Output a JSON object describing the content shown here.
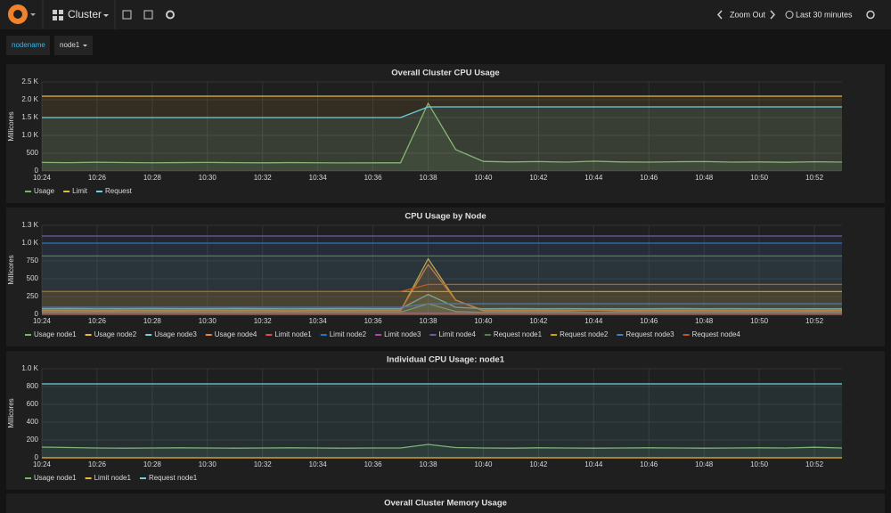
{
  "header": {
    "dashboard": "Cluster",
    "zoom": "Zoom Out",
    "time_range": "Last 30 minutes"
  },
  "variables": {
    "label": "nodename",
    "value": "node1"
  },
  "chart_data": [
    {
      "type": "line",
      "title": "Overall Cluster CPU Usage",
      "y_label": "Millicores",
      "grid": true,
      "categories": [
        "10:24",
        null,
        "10:26",
        null,
        "10:28",
        null,
        "10:30",
        null,
        "10:32",
        null,
        "10:34",
        null,
        "10:36",
        null,
        "10:38",
        null,
        "10:40",
        null,
        "10:42",
        null,
        "10:44",
        null,
        "10:46",
        null,
        "10:48",
        null,
        "10:50",
        null,
        "10:52",
        null
      ],
      "ylim": [
        0,
        2500
      ],
      "yticks": [
        0,
        500,
        {
          "value": 1000,
          "label": "1.0 K"
        },
        {
          "value": 1500,
          "label": "1.5 K"
        },
        {
          "value": 2000,
          "label": "2.0 K"
        },
        {
          "value": 2500,
          "label": "2.5 K"
        }
      ],
      "series": [
        {
          "name": "Usage",
          "color": "#7eb26d",
          "values": [
            240,
            235,
            245,
            238,
            232,
            236,
            240,
            234,
            230,
            236,
            232,
            228,
            230,
            230,
            1900,
            600,
            270,
            255,
            265,
            250,
            275,
            255,
            250,
            260,
            265,
            250,
            255,
            245,
            260,
            250
          ]
        },
        {
          "name": "Limit",
          "color": "#eab839",
          "values": [
            2100,
            2100,
            2100,
            2100,
            2100,
            2100,
            2100,
            2100,
            2100,
            2100,
            2100,
            2100,
            2100,
            2100,
            2100,
            2100,
            2100,
            2100,
            2100,
            2100,
            2100,
            2100,
            2100,
            2100,
            2100,
            2100,
            2100,
            2100,
            2100,
            2100
          ]
        },
        {
          "name": "Request",
          "color": "#6ed0e0",
          "values": [
            1500,
            1500,
            1500,
            1500,
            1500,
            1500,
            1500,
            1500,
            1500,
            1500,
            1500,
            1500,
            1500,
            1500,
            1800,
            1800,
            1800,
            1800,
            1800,
            1800,
            1800,
            1800,
            1800,
            1800,
            1800,
            1800,
            1800,
            1800,
            1800,
            1800
          ]
        }
      ]
    },
    {
      "type": "line",
      "title": "CPU Usage by Node",
      "y_label": "Millicores",
      "grid": true,
      "categories": [
        "10:24",
        null,
        "10:26",
        null,
        "10:28",
        null,
        "10:30",
        null,
        "10:32",
        null,
        "10:34",
        null,
        "10:36",
        null,
        "10:38",
        null,
        "10:40",
        null,
        "10:42",
        null,
        "10:44",
        null,
        "10:46",
        null,
        "10:48",
        null,
        "10:50",
        null,
        "10:52",
        null
      ],
      "ylim": [
        0,
        1250
      ],
      "yticks": [
        0,
        250,
        500,
        750,
        {
          "value": 1000,
          "label": "1.0 K"
        },
        {
          "value": 1250,
          "label": "1.3 K"
        }
      ],
      "series": [
        {
          "name": "Usage node1",
          "color": "#7eb26d",
          "values": [
            30,
            32,
            28,
            30,
            31,
            29,
            30,
            32,
            30,
            28,
            30,
            31,
            30,
            30,
            150,
            40,
            30,
            32,
            30,
            31,
            30,
            29,
            30,
            32,
            30,
            31,
            30,
            30,
            29,
            30
          ]
        },
        {
          "name": "Usage node2",
          "color": "#eab839",
          "values": [
            50,
            52,
            48,
            50,
            51,
            49,
            50,
            52,
            50,
            48,
            50,
            51,
            50,
            50,
            780,
            200,
            50,
            52,
            50,
            51,
            60,
            49,
            50,
            52,
            50,
            51,
            50,
            50,
            49,
            50
          ]
        },
        {
          "name": "Usage node3",
          "color": "#6ed0e0",
          "values": [
            80,
            82,
            78,
            80,
            81,
            79,
            80,
            82,
            80,
            78,
            80,
            81,
            80,
            80,
            280,
            100,
            80,
            82,
            80,
            81,
            80,
            79,
            80,
            82,
            80,
            81,
            80,
            80,
            79,
            80
          ]
        },
        {
          "name": "Usage node4",
          "color": "#ef843c",
          "values": [
            60,
            62,
            58,
            60,
            61,
            59,
            60,
            62,
            60,
            58,
            60,
            61,
            60,
            60,
            700,
            200,
            60,
            62,
            60,
            61,
            60,
            59,
            60,
            62,
            60,
            61,
            60,
            60,
            59,
            60
          ]
        },
        {
          "name": "Limit node1",
          "color": "#e24d42",
          "values": [
            0,
            0,
            0,
            0,
            0,
            0,
            0,
            0,
            0,
            0,
            0,
            0,
            0,
            0,
            0,
            0,
            0,
            0,
            0,
            0,
            0,
            0,
            0,
            0,
            0,
            0,
            0,
            0,
            0,
            0
          ]
        },
        {
          "name": "Limit node2",
          "color": "#1f78c1",
          "values": [
            1000,
            1000,
            1000,
            1000,
            1000,
            1000,
            1000,
            1000,
            1000,
            1000,
            1000,
            1000,
            1000,
            1000,
            1000,
            1000,
            1000,
            1000,
            1000,
            1000,
            1000,
            1000,
            1000,
            1000,
            1000,
            1000,
            1000,
            1000,
            1000,
            1000
          ]
        },
        {
          "name": "Limit node3",
          "color": "#ba43a9",
          "values": [
            20,
            20,
            20,
            20,
            20,
            20,
            20,
            20,
            20,
            20,
            20,
            20,
            20,
            20,
            20,
            20,
            20,
            20,
            20,
            20,
            20,
            20,
            20,
            20,
            20,
            20,
            20,
            20,
            20,
            20
          ]
        },
        {
          "name": "Limit node4",
          "color": "#705da0",
          "values": [
            1100,
            1100,
            1100,
            1100,
            1100,
            1100,
            1100,
            1100,
            1100,
            1100,
            1100,
            1100,
            1100,
            1100,
            1100,
            1100,
            1100,
            1100,
            1100,
            1100,
            1100,
            1100,
            1100,
            1100,
            1100,
            1100,
            1100,
            1100,
            1100,
            1100
          ]
        },
        {
          "name": "Request node1",
          "color": "#508642",
          "values": [
            820,
            820,
            820,
            820,
            820,
            820,
            820,
            820,
            820,
            820,
            820,
            820,
            820,
            820,
            820,
            820,
            820,
            820,
            820,
            820,
            820,
            820,
            820,
            820,
            820,
            820,
            820,
            820,
            820,
            820
          ]
        },
        {
          "name": "Request node2",
          "color": "#cca300",
          "values": [
            320,
            320,
            320,
            320,
            320,
            320,
            320,
            320,
            320,
            320,
            320,
            320,
            320,
            320,
            320,
            320,
            320,
            320,
            320,
            320,
            320,
            320,
            320,
            320,
            320,
            320,
            320,
            320,
            320,
            320
          ]
        },
        {
          "name": "Request node3",
          "color": "#447ebc",
          "values": [
            100,
            100,
            100,
            100,
            100,
            100,
            100,
            100,
            100,
            100,
            100,
            100,
            100,
            100,
            150,
            150,
            150,
            150,
            150,
            150,
            150,
            150,
            150,
            150,
            150,
            150,
            150,
            150,
            150,
            150
          ]
        },
        {
          "name": "Request node4",
          "color": "#c15c17",
          "values": [
            320,
            320,
            320,
            320,
            320,
            320,
            320,
            320,
            320,
            320,
            320,
            320,
            320,
            320,
            420,
            420,
            420,
            420,
            420,
            420,
            420,
            420,
            420,
            420,
            420,
            420,
            420,
            420,
            420,
            420
          ]
        }
      ]
    },
    {
      "type": "line",
      "title": "Individual CPU Usage: node1",
      "y_label": "Millicores",
      "grid": true,
      "categories": [
        "10:24",
        null,
        "10:26",
        null,
        "10:28",
        null,
        "10:30",
        null,
        "10:32",
        null,
        "10:34",
        null,
        "10:36",
        null,
        "10:38",
        null,
        "10:40",
        null,
        "10:42",
        null,
        "10:44",
        null,
        "10:46",
        null,
        "10:48",
        null,
        "10:50",
        null,
        "10:52",
        null
      ],
      "ylim": [
        0,
        1000
      ],
      "yticks": [
        0,
        200,
        400,
        600,
        800,
        {
          "value": 1000,
          "label": "1.0 K"
        }
      ],
      "series": [
        {
          "name": "Usage node1",
          "color": "#7eb26d",
          "values": [
            120,
            115,
            110,
            108,
            110,
            112,
            110,
            108,
            110,
            112,
            110,
            108,
            110,
            110,
            150,
            115,
            110,
            108,
            112,
            110,
            108,
            110,
            112,
            110,
            108,
            110,
            112,
            110,
            118,
            110
          ]
        },
        {
          "name": "Limit node1",
          "color": "#eab839",
          "values": [
            0,
            0,
            0,
            0,
            0,
            0,
            0,
            0,
            0,
            0,
            0,
            0,
            0,
            0,
            0,
            0,
            0,
            0,
            0,
            0,
            0,
            0,
            0,
            0,
            0,
            0,
            0,
            0,
            0,
            0
          ]
        },
        {
          "name": "Request node1",
          "color": "#6ed0e0",
          "values": [
            830,
            830,
            830,
            830,
            830,
            830,
            830,
            830,
            830,
            830,
            830,
            830,
            830,
            830,
            830,
            830,
            830,
            830,
            830,
            830,
            830,
            830,
            830,
            830,
            830,
            830,
            830,
            830,
            830,
            830
          ]
        }
      ]
    }
  ],
  "next_panel": {
    "title": "Overall Cluster Memory Usage"
  }
}
